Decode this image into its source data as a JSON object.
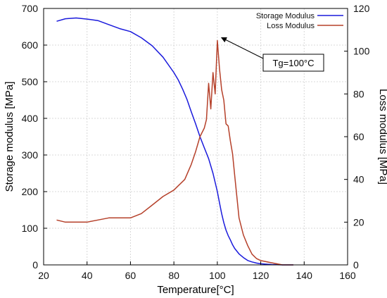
{
  "chart_data": {
    "type": "line",
    "title": "",
    "xlabel": "Temperature[°C]",
    "ylabel_left": "Storage modulus [MPa]",
    "ylabel_right": "Loss modulus [MPa]",
    "xlim": [
      20,
      160
    ],
    "ylim_left": [
      0,
      700
    ],
    "ylim_right": [
      0,
      120
    ],
    "x_ticks": [
      "20",
      "40",
      "60",
      "80",
      "100",
      "120",
      "140",
      "160"
    ],
    "y_left_ticks": [
      "0",
      "100",
      "200",
      "300",
      "400",
      "500",
      "600",
      "700"
    ],
    "y_right_ticks": [
      "0",
      "20",
      "40",
      "60",
      "80",
      "100",
      "120"
    ],
    "grid": true,
    "legend_position": "top-right",
    "series": [
      {
        "name": "Storage Modulus",
        "axis": "left",
        "color": "#1a1adc",
        "x": [
          26,
          30,
          35,
          40,
          45,
          50,
          55,
          60,
          65,
          70,
          75,
          80,
          82,
          84,
          86,
          88,
          90,
          92,
          94,
          96,
          98,
          99,
          100,
          101,
          102,
          103,
          104,
          105,
          106,
          107,
          108,
          110,
          112,
          114,
          116,
          118,
          120,
          125,
          130,
          135
        ],
        "values": [
          665,
          672,
          674,
          671,
          667,
          656,
          645,
          637,
          620,
          598,
          567,
          525,
          505,
          480,
          452,
          418,
          385,
          350,
          320,
          290,
          250,
          225,
          200,
          170,
          140,
          115,
          95,
          80,
          68,
          55,
          45,
          30,
          20,
          12,
          8,
          5,
          3,
          1,
          0,
          0
        ]
      },
      {
        "name": "Loss Modulus",
        "axis": "right",
        "color": "#b5402a",
        "x": [
          26,
          30,
          35,
          40,
          45,
          50,
          55,
          60,
          65,
          70,
          75,
          80,
          85,
          88,
          90,
          92,
          94,
          95,
          96,
          97,
          98,
          99,
          100,
          101,
          102,
          103,
          104,
          105,
          106,
          107,
          108,
          109,
          110,
          112,
          114,
          116,
          118,
          120,
          125,
          130,
          135
        ],
        "values": [
          21,
          20,
          20,
          20,
          21,
          22,
          22,
          22,
          24,
          28,
          32,
          35,
          40,
          47,
          53,
          60,
          64,
          68,
          85,
          73,
          90,
          80,
          105,
          92,
          82,
          77,
          66,
          65,
          58,
          52,
          42,
          32,
          22,
          14,
          9,
          5,
          3,
          2,
          1,
          0,
          0
        ]
      }
    ],
    "annotations": [
      {
        "text": "Tg=100°C",
        "x": 100,
        "y_right": 105
      }
    ]
  }
}
